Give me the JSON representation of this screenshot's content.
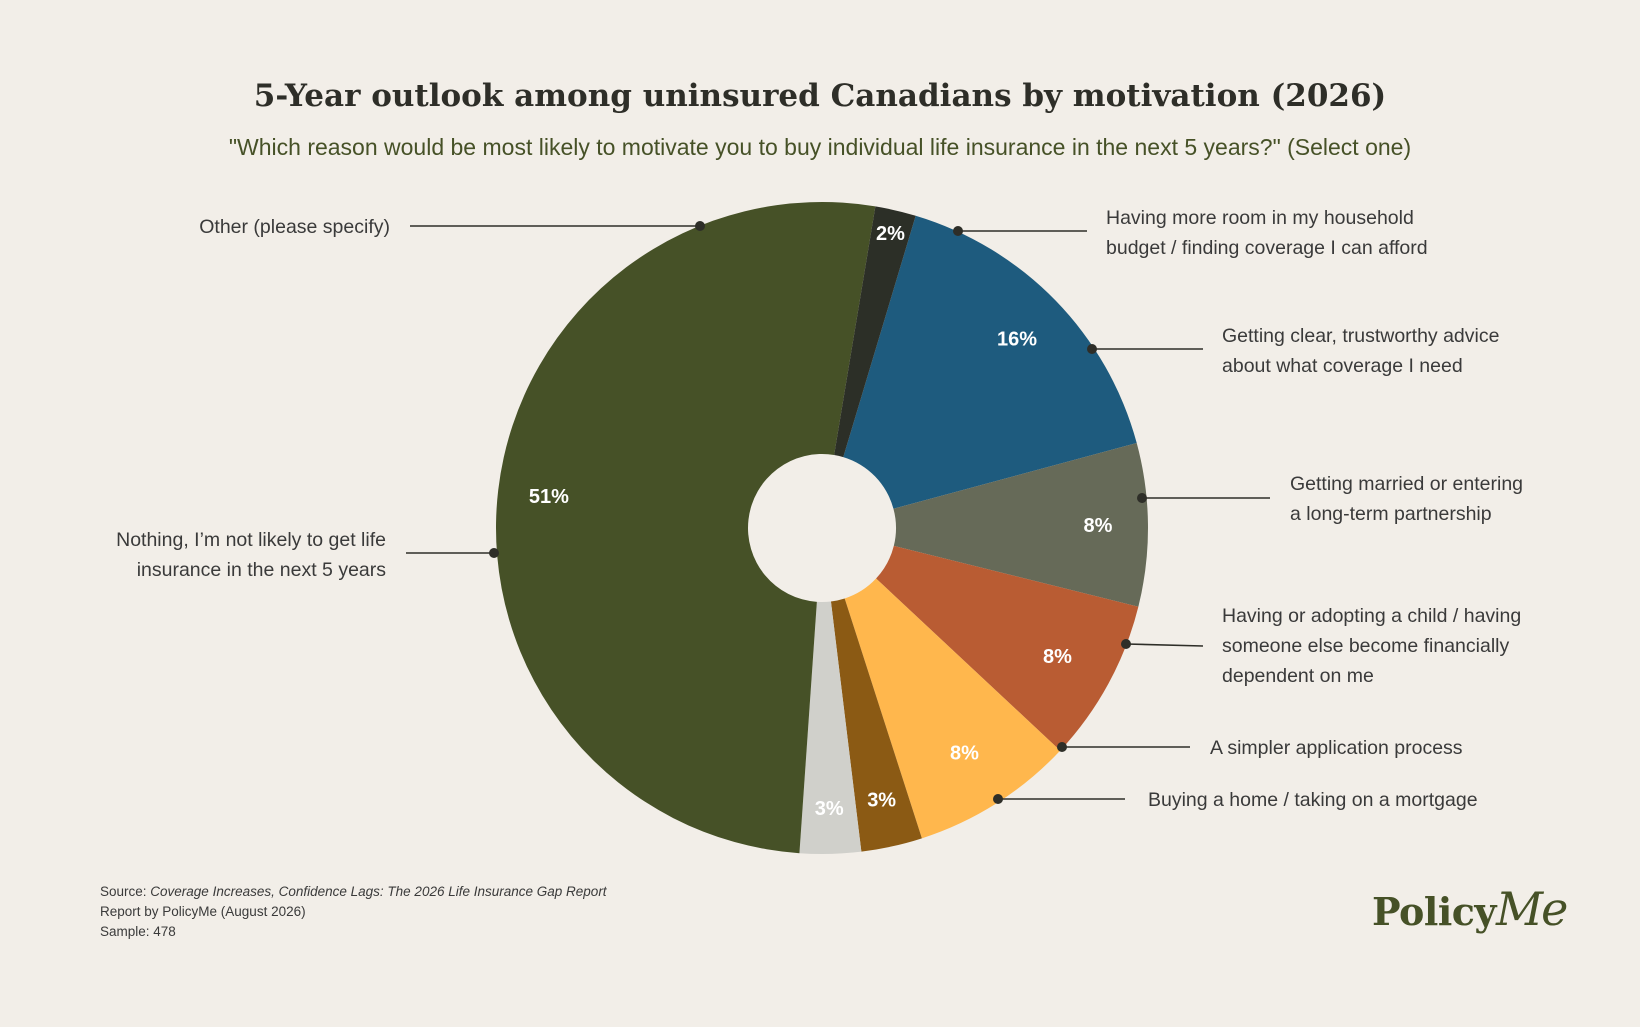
{
  "title": "5-Year outlook among uninsured Canadians by motivation (2026)",
  "subtitle": "\"Which reason would be most likely to motivate you to buy individual life insurance in the next 5 years?\" (Select one)",
  "source": {
    "prefix": "Source: ",
    "report_title": "Coverage Increases, Confidence Lags: The 2026 Life Insurance Gap Report",
    "line2": "Report by PolicyMe (August 2026)",
    "line3": "Sample: 478"
  },
  "logo": {
    "part1": "Policy",
    "part2": "Me"
  },
  "chart_data": {
    "type": "pie",
    "donut": true,
    "slices": [
      {
        "label": [
          "Having more room in my household",
          "budget / finding coverage I can afford"
        ],
        "value": 16,
        "value_label": "16%",
        "color": "#1e5b7e"
      },
      {
        "label": [
          "Getting clear, trustworthy advice",
          "about what coverage I need"
        ],
        "value": 8,
        "value_label": "8%",
        "color": "#666a58"
      },
      {
        "label": [
          "Getting married or entering",
          "a long-term partnership"
        ],
        "value": 8,
        "value_label": "8%",
        "color": "#b95c33"
      },
      {
        "label": [
          "Having or adopting a child / having",
          "someone else become financially",
          "dependent on me"
        ],
        "value": 8,
        "value_label": "8%",
        "color": "#ffb74d"
      },
      {
        "label": [
          "A simpler application process"
        ],
        "value": 3,
        "value_label": "3%",
        "color": "#8b5a14"
      },
      {
        "label": [
          "Buying a home / taking on a mortgage"
        ],
        "value": 3,
        "value_label": "3%",
        "color": "#d0d0cb"
      },
      {
        "label": [
          "Nothing, I’m not likely to get life",
          "insurance in the next 5 years"
        ],
        "value": 51,
        "value_label": "51%",
        "color": "#465127"
      },
      {
        "label": [
          "Other (please specify)"
        ],
        "value": 2,
        "value_label": "2%",
        "color": "#2c2f27"
      }
    ]
  }
}
